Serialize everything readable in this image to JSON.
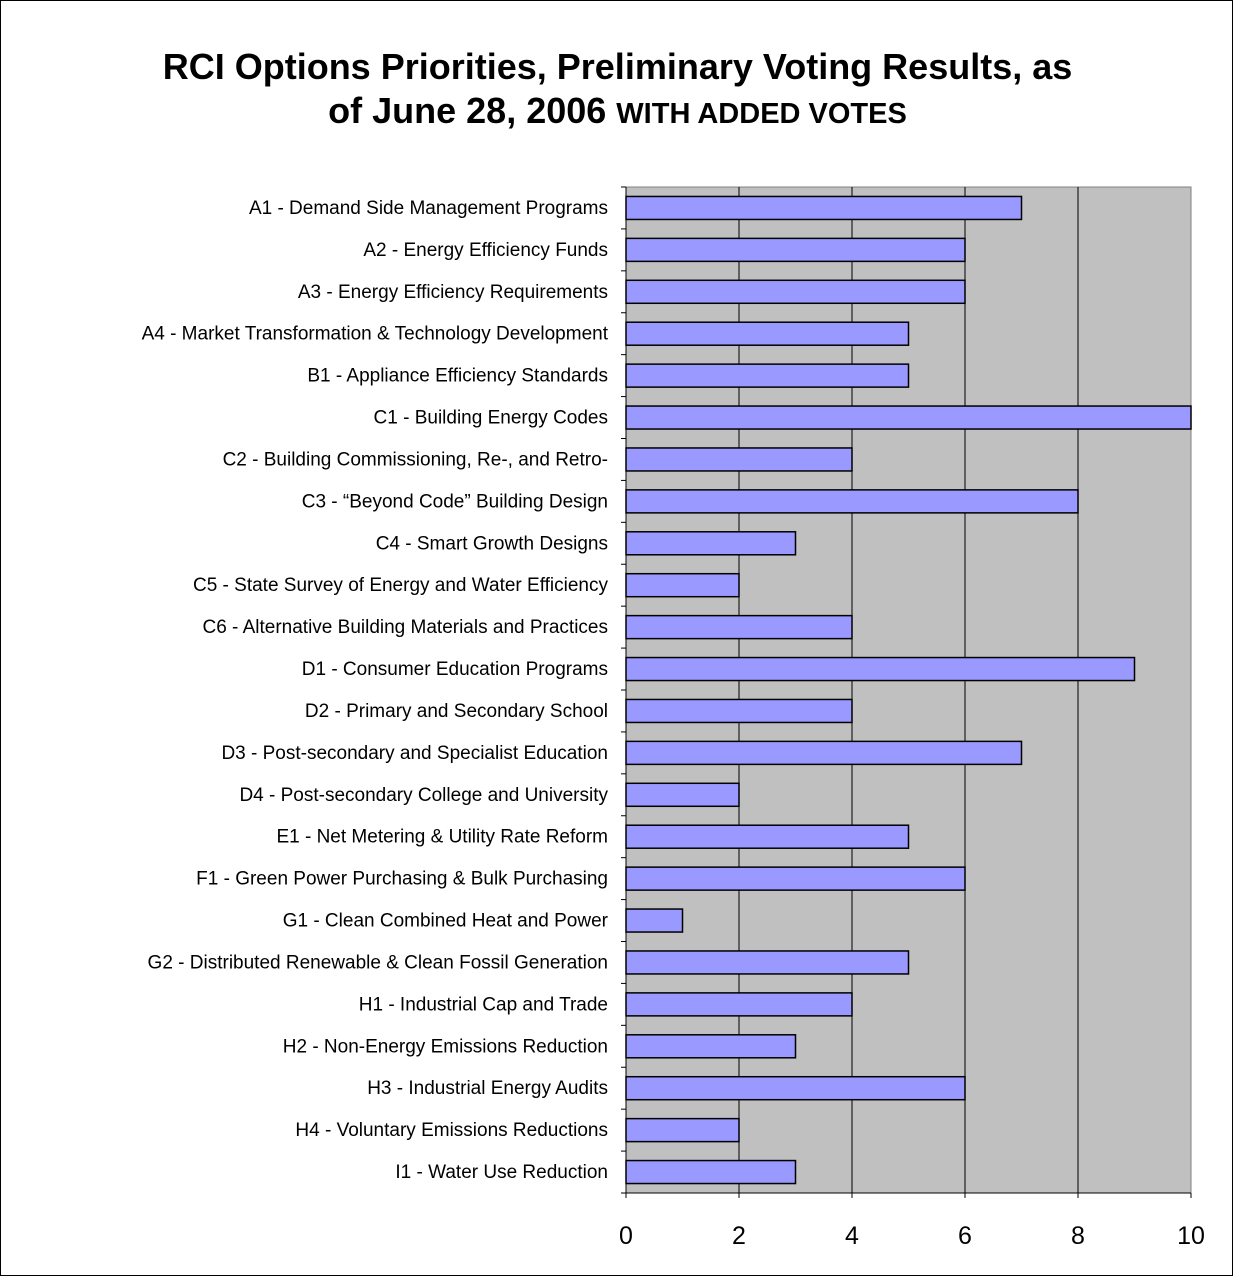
{
  "chart_data": {
    "type": "bar",
    "orientation": "horizontal",
    "title_line1": "RCI Options Priorities, Preliminary Voting Results, as",
    "title_line2_a": "of June 28, 2006 ",
    "title_line2_b": "WITH ADDED VOTES",
    "categories": [
      "A1 - Demand Side Management Programs",
      "A2 - Energy Efficiency Funds",
      "A3 - Energy Efficiency Requirements",
      "A4 - Market Transformation & Technology Development",
      "B1 - Appliance Efficiency Standards",
      "C1 - Building Energy Codes",
      "C2 - Building Commissioning, Re-, and Retro-",
      "C3 - “Beyond Code” Building Design",
      "C4 - Smart Growth Designs",
      "C5 - State Survey of Energy and Water Efficiency",
      "C6 - Alternative Building Materials and Practices",
      "D1 - Consumer Education Programs",
      "D2 - Primary and Secondary School",
      "D3 - Post-secondary and Specialist Education",
      "D4 - Post-secondary College and University",
      "E1 - Net Metering & Utility Rate Reform",
      "F1 - Green Power Purchasing & Bulk Purchasing",
      "G1 - Clean Combined Heat and Power",
      "G2 - Distributed Renewable & Clean Fossil Generation",
      "H1 - Industrial Cap and Trade",
      "H2 - Non-Energy Emissions Reduction",
      "H3 - Industrial Energy Audits",
      "H4 - Voluntary Emissions Reductions",
      "I1 - Water Use Reduction"
    ],
    "values": [
      7,
      6,
      6,
      5,
      5,
      10,
      4,
      8,
      3,
      2,
      4,
      9,
      4,
      7,
      2,
      5,
      6,
      1,
      5,
      4,
      3,
      6,
      2,
      3
    ],
    "xlim": [
      0,
      10
    ],
    "xticks": [
      "0",
      "2",
      "4",
      "6",
      "8",
      "10"
    ],
    "grid": true,
    "legend": "none",
    "colors": {
      "bar_fill": "#9999ff",
      "bar_stroke": "#000000",
      "plot_background": "#c0c0c0",
      "gridline": "#000000"
    }
  }
}
